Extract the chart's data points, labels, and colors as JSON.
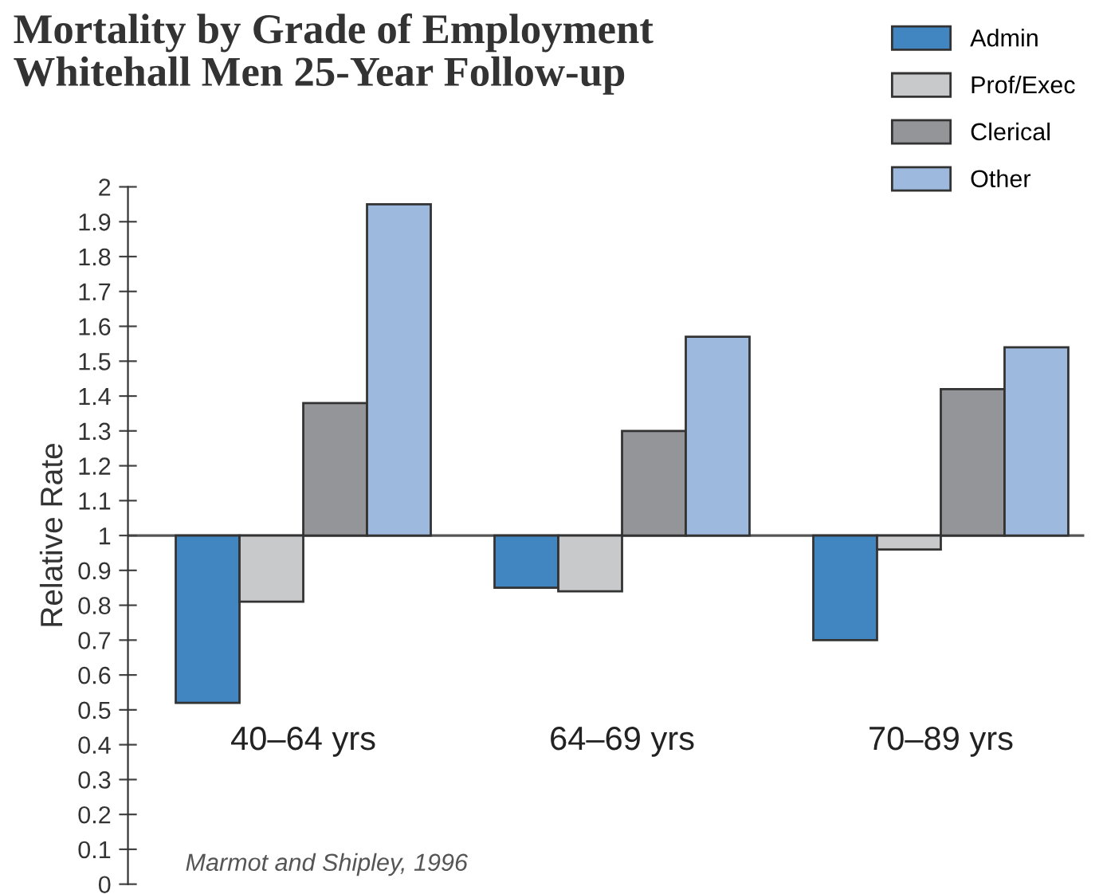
{
  "chart_data": {
    "type": "bar",
    "title": "Mortality by Grade of Employment\nWhitehall Men 25-Year Follow-up",
    "ylabel": "Relative Rate",
    "categories": [
      "40–64 yrs",
      "64–69 yrs",
      "70–89 yrs"
    ],
    "series": [
      {
        "name": "Admin",
        "color": "#4185c1",
        "base": [
          1,
          1,
          1
        ],
        "values": [
          -0.48,
          -0.15,
          -0.3
        ]
      },
      {
        "name": "Prof/Exec",
        "color": "#c8c9cb",
        "base": [
          1,
          1,
          1
        ],
        "values": [
          -0.19,
          -0.16,
          -0.04
        ]
      },
      {
        "name": "Clerical",
        "color": "#939598",
        "base": [
          1,
          1,
          1
        ],
        "values": [
          0.38,
          0.3,
          0.42
        ]
      },
      {
        "name": "Other",
        "color": "#9db9dd",
        "base": [
          1,
          1,
          1
        ],
        "values": [
          0.95,
          0.57,
          0.54
        ]
      }
    ],
    "ref_lines": [
      {
        "axis": "y",
        "value": 1,
        "color": "#555555"
      }
    ],
    "ylim": [
      0,
      2
    ],
    "yticks": [
      0,
      0.1,
      0.2,
      0.3,
      0.4,
      0.5,
      0.6,
      0.7,
      0.8,
      0.9,
      1,
      1.1,
      1.2,
      1.3,
      1.4,
      1.5,
      1.6,
      1.7,
      1.8,
      1.9,
      2
    ],
    "legend": "top right",
    "grid": false,
    "annotations": [
      "Marmot and Shipley, 1996"
    ]
  }
}
